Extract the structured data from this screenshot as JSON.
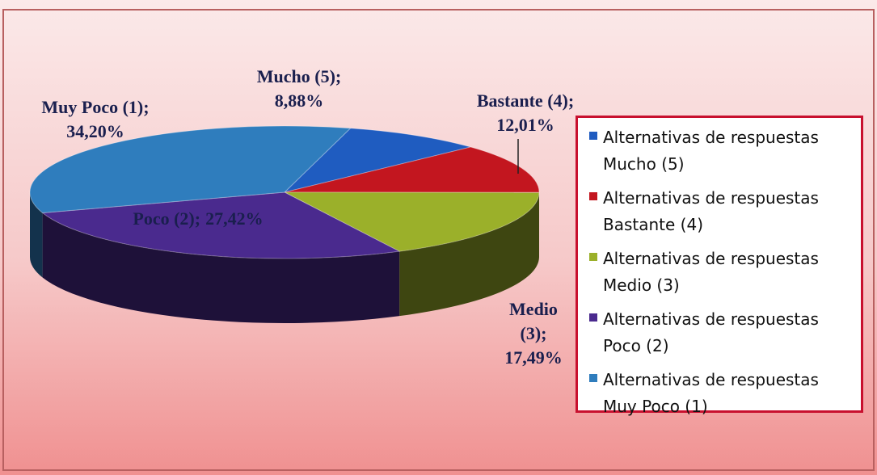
{
  "chart_data": {
    "type": "pie",
    "categories": [
      "Alternativas de respuestas Mucho (5)",
      "Alternativas de respuestas Bastante (4)",
      "Alternativas de respuestas Medio (3)",
      "Alternativas de respuestas Poco (2)",
      "Alternativas de respuestas Muy Poco (1)"
    ],
    "labels": [
      "Mucho (5);",
      "Bastante (4);",
      "Medio (3);",
      "Poco (2);",
      "Muy Poco (1);"
    ],
    "values": [
      8.88,
      12.01,
      17.49,
      27.42,
      34.2
    ],
    "value_labels": [
      "8,88%",
      "12,01%",
      "17,49%",
      "27,42%",
      "34,20%"
    ],
    "colors": [
      "#1f5cc0",
      "#c3161f",
      "#9bb02a",
      "#4a2a8e",
      "#2f7dbd"
    ],
    "legend": "right"
  }
}
